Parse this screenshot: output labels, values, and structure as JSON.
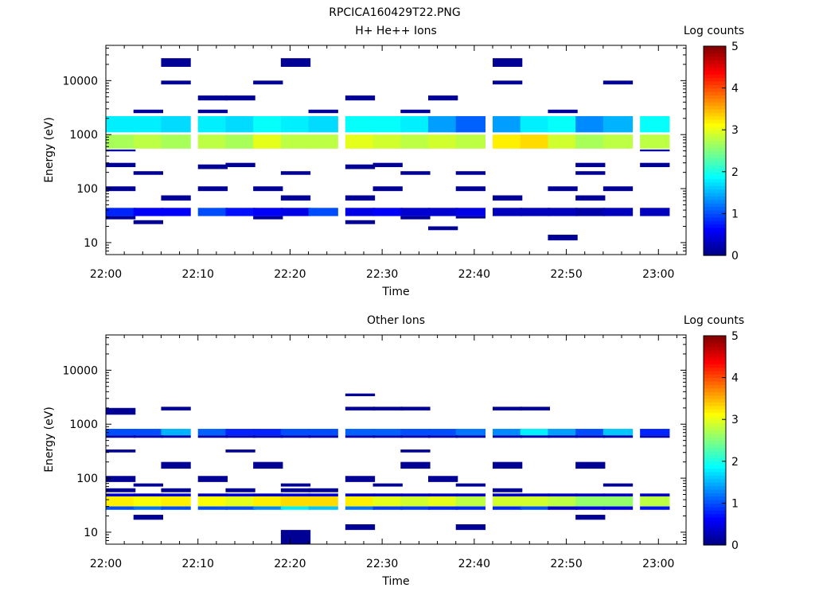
{
  "figure": {
    "title": "RPCICA160429T22.PNG"
  },
  "chart_data": [
    {
      "type": "heatmap",
      "title": "H+ He++ Ions",
      "xlabel": "Time",
      "ylabel": "Energy (eV)",
      "x_ticks": [
        "22:00",
        "22:10",
        "22:20",
        "22:30",
        "22:40",
        "22:50",
        "23:00"
      ],
      "x_range": [
        "22:00",
        "23:03"
      ],
      "y_scale": "log",
      "y_ticks": [
        "10",
        "100",
        "1000",
        "10000"
      ],
      "ylim": [
        6,
        45000
      ],
      "colorbar": {
        "label": "Log counts",
        "ticks": [
          "0",
          "1",
          "2",
          "3",
          "4",
          "5"
        ],
        "range": [
          0,
          5
        ],
        "colormap": "jet"
      },
      "time_bins": [
        "22:00",
        "22:03",
        "22:06",
        "22:10",
        "22:13",
        "22:16",
        "22:19",
        "22:22",
        "22:26",
        "22:29",
        "22:32",
        "22:35",
        "22:38",
        "22:42",
        "22:45",
        "22:48",
        "22:51",
        "22:54",
        "22:58"
      ],
      "bands": [
        {
          "e": [
            550,
            1000
          ],
          "z": [
            2.7,
            2.8,
            2.7,
            2.8,
            2.7,
            3.0,
            2.8,
            2.8,
            3.0,
            2.9,
            2.8,
            2.9,
            2.8,
            3.2,
            3.3,
            2.9,
            2.7,
            2.8,
            2.8
          ]
        },
        {
          "e": [
            1100,
            2200
          ],
          "z": [
            1.8,
            1.8,
            1.7,
            1.8,
            1.7,
            1.9,
            1.8,
            1.7,
            1.9,
            1.9,
            1.8,
            1.4,
            1.1,
            1.4,
            1.8,
            1.9,
            1.3,
            1.5,
            1.9
          ]
        },
        {
          "e": [
            31,
            44
          ],
          "z": [
            0.8,
            0.6,
            0.6,
            1.0,
            0.7,
            0.6,
            0.5,
            1.0,
            0.5,
            0.6,
            0.4,
            0.4,
            0.5,
            0.3,
            0.3,
            0.3,
            0.2,
            0.3,
            0.3
          ]
        }
      ],
      "cells": [
        {
          "bins": [
            0,
            18
          ],
          "e": [
            490,
            530
          ],
          "z": 0.2
        },
        {
          "bins": [
            1,
            3,
            7,
            10,
            15
          ],
          "e": [
            2500,
            2900
          ],
          "z": 0.1
        },
        {
          "bins": [
            3,
            4,
            8,
            11
          ],
          "e": [
            4300,
            5300
          ],
          "z": 0.1
        },
        {
          "bins": [
            2,
            5,
            13,
            17
          ],
          "e": [
            8500,
            10000
          ],
          "z": 0.1
        },
        {
          "bins": [
            2,
            6,
            13
          ],
          "e": [
            18000,
            26000
          ],
          "z": 0.1
        },
        {
          "bins": [
            0,
            4,
            9,
            16,
            18
          ],
          "e": [
            250,
            300
          ],
          "z": 0.1
        },
        {
          "bins": [
            1,
            6,
            10,
            12,
            16
          ],
          "e": [
            180,
            210
          ],
          "z": 0.1
        },
        {
          "bins": [
            3,
            8
          ],
          "e": [
            230,
            280
          ],
          "z": 0.1
        },
        {
          "bins": [
            0,
            3,
            5,
            9,
            12,
            15,
            17
          ],
          "e": [
            90,
            110
          ],
          "z": 0.1
        },
        {
          "bins": [
            2,
            6,
            8,
            13,
            16
          ],
          "e": [
            60,
            75
          ],
          "z": 0.1
        },
        {
          "bins": [
            1,
            8
          ],
          "e": [
            22,
            26
          ],
          "z": 0.1
        },
        {
          "bins": [
            0,
            5,
            10
          ],
          "e": [
            27,
            31
          ],
          "z": 0.1
        },
        {
          "bins": [
            11
          ],
          "e": [
            17,
            20
          ],
          "z": 0.1
        },
        {
          "bins": [
            15
          ],
          "e": [
            11,
            14
          ],
          "z": 0.1
        },
        {
          "bins": [
            12
          ],
          "e": [
            28,
            31
          ],
          "z": 0.1
        }
      ]
    },
    {
      "type": "heatmap",
      "title": "Other Ions",
      "xlabel": "Time",
      "ylabel": "Energy (eV)",
      "x_ticks": [
        "22:00",
        "22:10",
        "22:20",
        "22:30",
        "22:40",
        "22:50",
        "23:00"
      ],
      "x_range": [
        "22:00",
        "23:03"
      ],
      "y_scale": "log",
      "y_ticks": [
        "10",
        "100",
        "1000",
        "10000"
      ],
      "ylim": [
        6,
        45000
      ],
      "colorbar": {
        "label": "Log counts",
        "ticks": [
          "0",
          "1",
          "2",
          "3",
          "4",
          "5"
        ],
        "range": [
          0,
          5
        ],
        "colormap": "jet"
      },
      "time_bins": [
        "22:00",
        "22:03",
        "22:06",
        "22:10",
        "22:13",
        "22:16",
        "22:19",
        "22:22",
        "22:26",
        "22:29",
        "22:32",
        "22:35",
        "22:38",
        "22:42",
        "22:45",
        "22:48",
        "22:51",
        "22:54",
        "22:58"
      ],
      "bands": [
        {
          "e": [
            30,
            46
          ],
          "z": [
            3.2,
            3.1,
            3.2,
            3.1,
            3.0,
            3.2,
            3.3,
            3.3,
            3.2,
            3.0,
            2.9,
            3.0,
            2.8,
            2.9,
            2.9,
            2.8,
            2.6,
            2.6,
            2.8
          ]
        },
        {
          "e": [
            26,
            30
          ],
          "z": [
            1.0,
            1.2,
            1.0,
            1.0,
            1.0,
            1.3,
            1.8,
            1.6,
            1.2,
            0.9,
            0.9,
            0.8,
            0.8,
            0.8,
            1.0,
            0.4,
            0.5,
            0.5,
            0.7
          ]
        },
        {
          "e": [
            46,
            52
          ],
          "z": [
            0.4,
            0.3,
            0.4,
            0.3,
            0.4,
            0.3,
            0.4,
            0.4,
            0.3,
            0.3,
            0.3,
            0.3,
            0.3,
            0.3,
            0.3,
            0.3,
            0.3,
            0.3,
            0.3
          ]
        },
        {
          "e": [
            620,
            820
          ],
          "z": [
            1.0,
            1.0,
            1.5,
            1.1,
            0.8,
            0.8,
            1.0,
            1.0,
            1.1,
            1.1,
            1.0,
            1.0,
            1.2,
            1.3,
            1.8,
            1.4,
            1.0,
            1.6,
            0.8
          ]
        },
        {
          "e": [
            560,
            620
          ],
          "z": [
            0.2,
            0.2,
            0.2,
            0.2,
            0.2,
            0.2,
            0.2,
            0.2,
            0.2,
            0.2,
            0.2,
            0.2,
            0.2,
            0.2,
            0.2,
            0.2,
            0.2,
            0.2,
            0.2
          ]
        }
      ],
      "cells": [
        {
          "bins": [
            0
          ],
          "e": [
            1500,
            2000
          ],
          "z": 0.1
        },
        {
          "bins": [
            2,
            8,
            9,
            10,
            13,
            14
          ],
          "e": [
            1800,
            2100
          ],
          "z": 0.1
        },
        {
          "bins": [
            8
          ],
          "e": [
            3300,
            3700
          ],
          "z": 0.1
        },
        {
          "bins": [
            0,
            4,
            10
          ],
          "e": [
            300,
            340
          ],
          "z": 0.1
        },
        {
          "bins": [
            2,
            5,
            10,
            13,
            16
          ],
          "e": [
            150,
            200
          ],
          "z": 0.1
        },
        {
          "bins": [
            0,
            3,
            8,
            11
          ],
          "e": [
            85,
            110
          ],
          "z": 0.1
        },
        {
          "bins": [
            1,
            6,
            9,
            12,
            17
          ],
          "e": [
            70,
            80
          ],
          "z": 0.1
        },
        {
          "bins": [
            0,
            2,
            4,
            6,
            7,
            13
          ],
          "e": [
            55,
            65
          ],
          "z": 0.1
        },
        {
          "bins": [
            1,
            16
          ],
          "e": [
            17,
            21
          ],
          "z": 0.1
        },
        {
          "bins": [
            8,
            12
          ],
          "e": [
            11,
            14
          ],
          "z": 0.1
        },
        {
          "bins": [
            6
          ],
          "e": [
            6,
            11
          ],
          "z": 0.1
        }
      ]
    }
  ]
}
